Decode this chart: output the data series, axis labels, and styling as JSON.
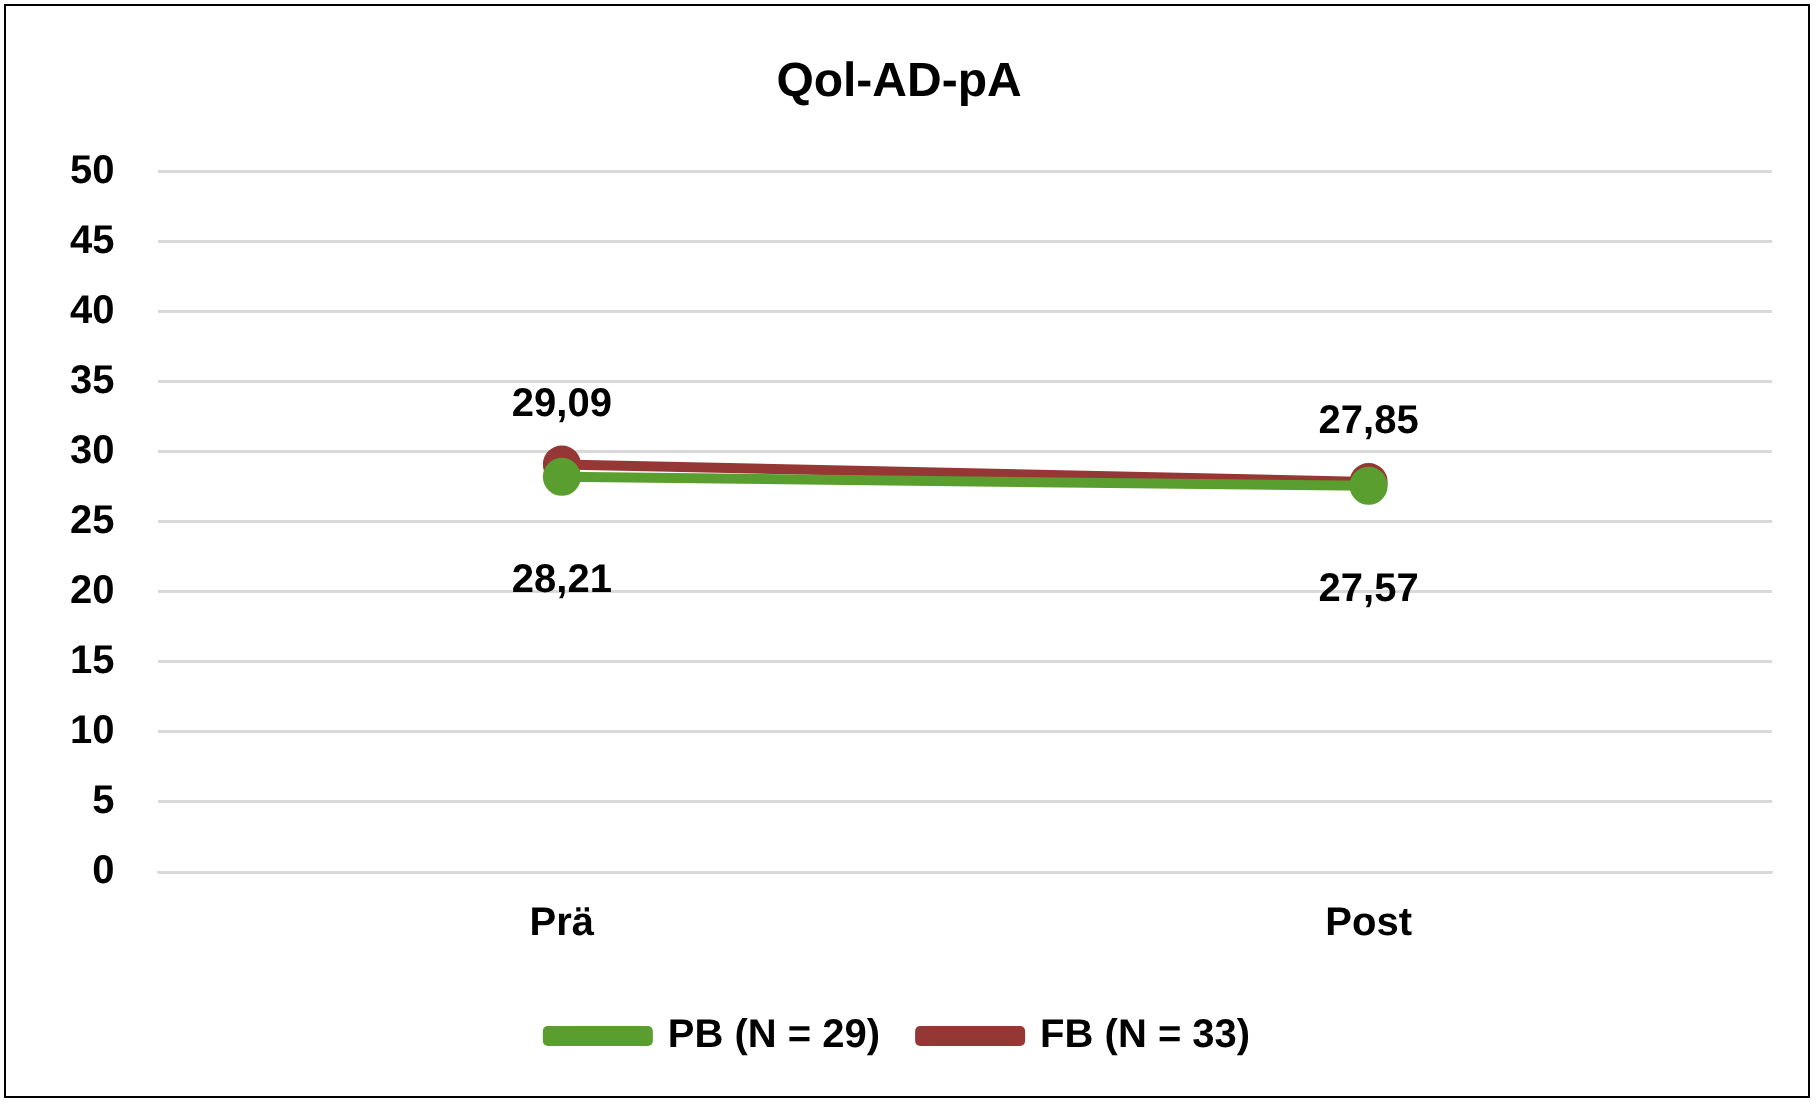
{
  "chart_data": {
    "type": "line",
    "title": "Qol-AD-pA",
    "categories": [
      "Prä",
      "Post"
    ],
    "series": [
      {
        "name": "FB (N = 33)",
        "color": "#953735",
        "values": [
          29.09,
          27.85
        ],
        "value_labels": [
          "29,09",
          "27,85"
        ]
      },
      {
        "name": "PB (N = 29)",
        "color": "#5a9e2f",
        "values": [
          28.21,
          27.57
        ],
        "value_labels": [
          "28,21",
          "27,57"
        ]
      }
    ],
    "ylim": [
      0,
      50
    ],
    "yticks": [
      0,
      5,
      10,
      15,
      20,
      25,
      30,
      35,
      40,
      45,
      50
    ],
    "grid": "y",
    "legend": "bottom",
    "marker": "circle",
    "line_style": "solid"
  }
}
